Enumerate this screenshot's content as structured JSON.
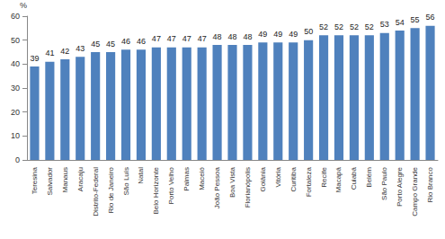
{
  "chart_data": {
    "type": "bar",
    "y_label": "%",
    "categories": [
      "Teresina",
      "Salvador",
      "Manaus",
      "Aracaju",
      "Distrito-Federal",
      "Rio de Janeiro",
      "São Luís",
      "Natal",
      "Belo Horizonte",
      "Porto Velho",
      "Palmas",
      "Maceió",
      "João Pessoa",
      "Boa Vista",
      "Florianópolis",
      "Goiânia",
      "Vitória",
      "Curitiba",
      "Fortaleza",
      "Recife",
      "Macapá",
      "Cuiabá",
      "Belém",
      "São Paulo",
      "Porto Alegre",
      "Campo Grande",
      "Rio Branco"
    ],
    "values": [
      39,
      41,
      42,
      43,
      45,
      45,
      46,
      46,
      47,
      47,
      47,
      47,
      48,
      48,
      48,
      49,
      49,
      49,
      50,
      52,
      52,
      52,
      52,
      53,
      54,
      55,
      56
    ],
    "color": "#4f81bd",
    "ylim": [
      0,
      60
    ],
    "yticks": [
      0,
      10,
      20,
      30,
      40,
      50,
      60
    ],
    "grid": false,
    "data_labels": true
  }
}
